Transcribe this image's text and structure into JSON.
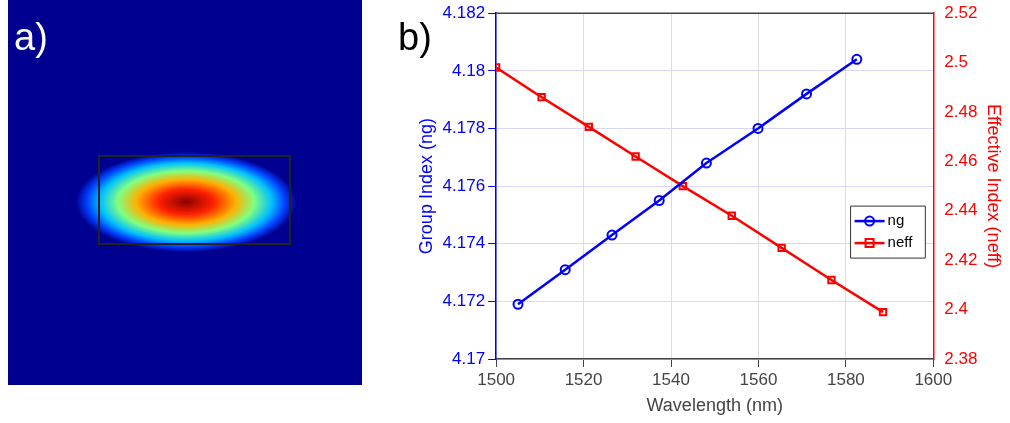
{
  "chart_data": {
    "type": "line",
    "xlabel": "Wavelength (nm)",
    "ylabel": "Group Index (ng)",
    "y2label": "Effective Index (neff)",
    "annotations": [
      "a)",
      "b)"
    ],
    "series": [
      {
        "name": "ng",
        "color": "#0000ff",
        "marker": "circle",
        "x": [
          1505,
          1515.8,
          1526.5,
          1537.3,
          1548.1,
          1559.9,
          1571,
          1582.5
        ],
        "values": [
          4.1719,
          4.1731,
          4.1743,
          4.1755,
          4.1768,
          4.178,
          4.1792,
          4.1804
        ]
      },
      {
        "name": "neff",
        "color": "#ff0000",
        "marker": "square",
        "axis": "y2",
        "x": [
          1500,
          1510.4,
          1521.2,
          1531.9,
          1542.7,
          1553.9,
          1565.3,
          1576.7,
          1588.5
        ],
        "values": [
          2.498,
          2.486,
          2.474,
          2.462,
          2.45,
          2.438,
          2.425,
          2.412,
          2.399
        ]
      }
    ],
    "xlim": [
      1500,
      1600
    ],
    "xticks": [
      1500,
      1520,
      1540,
      1560,
      1580,
      1600
    ],
    "ylim": [
      4.17,
      4.182
    ],
    "yticks": [
      4.17,
      4.172,
      4.174,
      4.176,
      4.178,
      4.18,
      4.182
    ],
    "y2lim": [
      2.38,
      2.52
    ],
    "y2ticks": [
      2.38,
      2.4,
      2.42,
      2.44,
      2.46,
      2.48,
      2.5,
      2.52
    ],
    "grid": true,
    "legend": "right",
    "line_style": "solid"
  }
}
